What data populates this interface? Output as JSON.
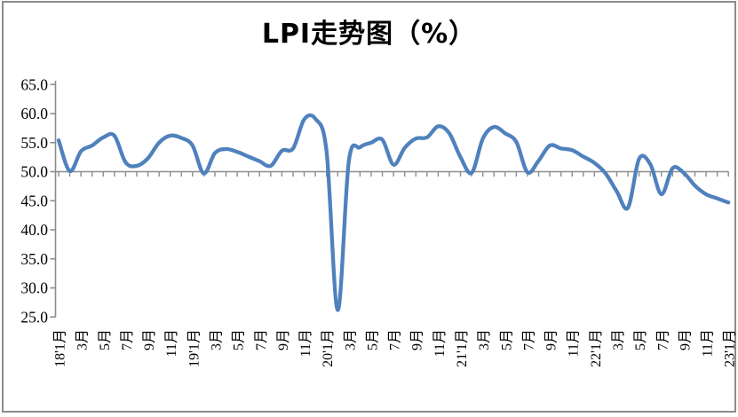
{
  "title": "LPI走势图（%）",
  "colors": {
    "line": "#4f81bd",
    "axis": "#8c8c8c",
    "border": "#8c8c8c",
    "title_text": "#000000",
    "tick_text": "#000000",
    "background": "#ffffff"
  },
  "chart_data": {
    "type": "line",
    "title": "LPI走势图（%）",
    "unit": "%",
    "legend": "none",
    "grid": "off",
    "baseline": 50.0,
    "ylim": [
      25.0,
      65.0
    ],
    "y_tick_step": 5.0,
    "y_tick_labels": [
      "65.0",
      "60.0",
      "55.0",
      "50.0",
      "45.0",
      "40.0",
      "35.0",
      "30.0",
      "25.0"
    ],
    "x_tick_labels": [
      "18'1月",
      "3月",
      "5月",
      "7月",
      "9月",
      "11月",
      "19'1月",
      "3月",
      "5月",
      "7月",
      "9月",
      "11月",
      "20'1月",
      "3月",
      "5月",
      "7月",
      "9月",
      "11月",
      "21'1月",
      "3月",
      "5月",
      "7月",
      "9月",
      "11月",
      "22'1月",
      "3月",
      "5月",
      "7月",
      "9月",
      "11月",
      "23'1月"
    ],
    "x_label_every_n_months": 2,
    "categories": [
      "2018-01",
      "2018-02",
      "2018-03",
      "2018-04",
      "2018-05",
      "2018-06",
      "2018-07",
      "2018-08",
      "2018-09",
      "2018-10",
      "2018-11",
      "2018-12",
      "2019-01",
      "2019-02",
      "2019-03",
      "2019-04",
      "2019-05",
      "2019-06",
      "2019-07",
      "2019-08",
      "2019-09",
      "2019-10",
      "2019-11",
      "2019-12",
      "2020-01",
      "2020-02",
      "2020-03",
      "2020-04",
      "2020-05",
      "2020-06",
      "2020-07",
      "2020-08",
      "2020-09",
      "2020-10",
      "2020-11",
      "2020-12",
      "2021-01",
      "2021-02",
      "2021-03",
      "2021-04",
      "2021-05",
      "2021-06",
      "2021-07",
      "2021-08",
      "2021-09",
      "2021-10",
      "2021-11",
      "2021-12",
      "2022-01",
      "2022-02",
      "2022-03",
      "2022-04",
      "2022-05",
      "2022-06",
      "2022-07",
      "2022-08",
      "2022-09",
      "2022-10",
      "2022-11",
      "2022-12",
      "2023-01"
    ],
    "values": [
      55.4,
      50.1,
      53.5,
      54.5,
      55.9,
      56.2,
      51.6,
      51.0,
      52.3,
      55.0,
      56.2,
      55.8,
      54.5,
      49.7,
      53.2,
      53.9,
      53.4,
      52.6,
      51.8,
      51.0,
      53.6,
      54.0,
      59.0,
      59.1,
      53.5,
      26.2,
      51.8,
      54.2,
      55.0,
      55.5,
      51.2,
      54.1,
      55.7,
      55.9,
      57.8,
      56.6,
      52.5,
      49.8,
      55.7,
      57.7,
      56.6,
      55.1,
      49.9,
      51.9,
      54.5,
      54.0,
      53.7,
      52.6,
      51.5,
      49.7,
      46.6,
      43.8,
      52.2,
      51.3,
      46.1,
      50.6,
      49.8,
      47.6,
      46.1,
      45.4,
      44.7
    ],
    "line_color": "#4f81bd",
    "line_smoothing": "smoothed spline, Excel style"
  }
}
